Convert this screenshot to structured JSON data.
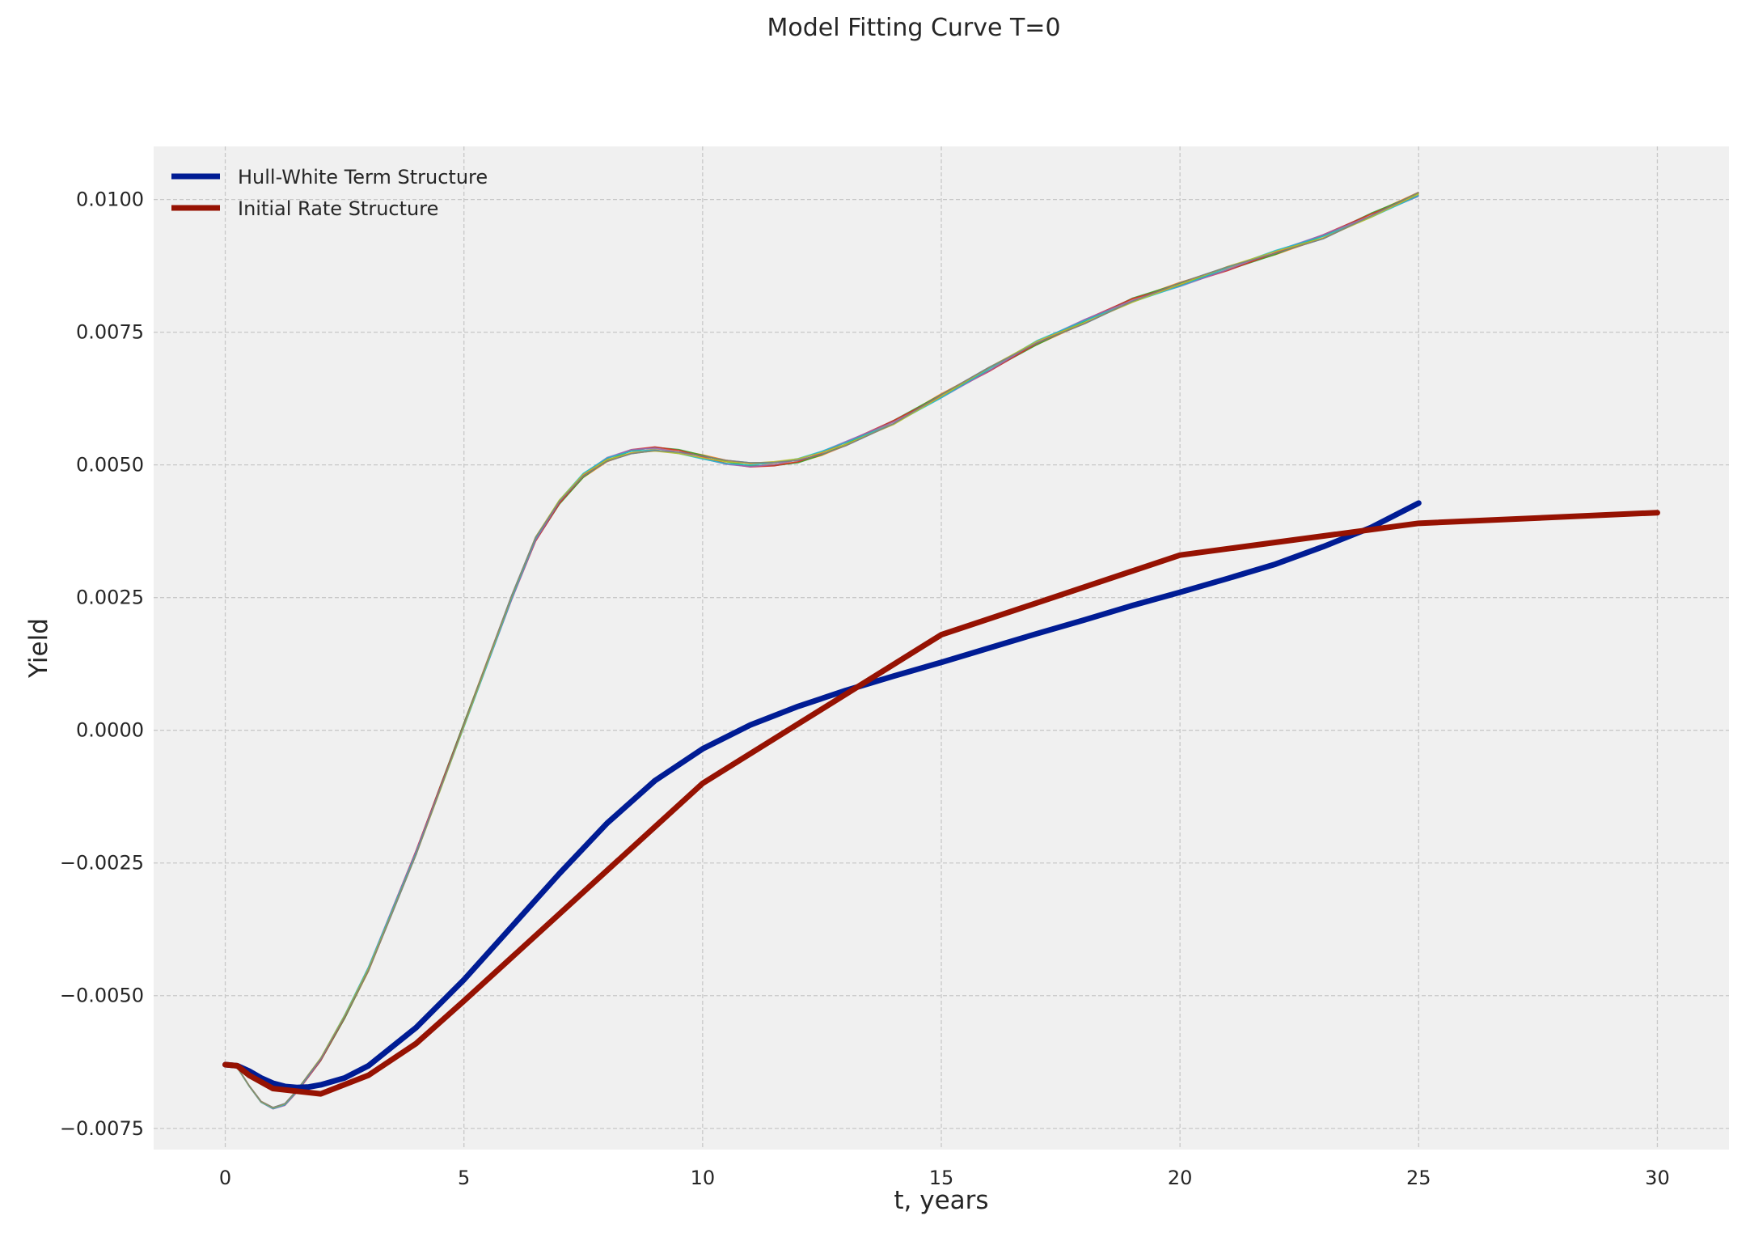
{
  "chart_data": {
    "type": "line",
    "title": "Model Fitting Curve T=0",
    "xlabel": "t, years",
    "ylabel": "Yield",
    "xlim": [
      -1.5,
      31.5
    ],
    "ylim": [
      -0.0079,
      0.011
    ],
    "x_ticks": [
      0,
      5,
      10,
      15,
      20,
      25,
      30
    ],
    "x_tick_labels": [
      "0",
      "5",
      "10",
      "15",
      "20",
      "25",
      "30"
    ],
    "y_ticks": [
      -0.0075,
      -0.005,
      -0.0025,
      0.0,
      0.0025,
      0.005,
      0.0075,
      0.01
    ],
    "y_tick_labels": [
      "−0.0075",
      "−0.0050",
      "−0.0025",
      "0.0000",
      "0.0025",
      "0.0050",
      "0.0075",
      "0.0100"
    ],
    "grid": true,
    "legend_position": "top-left",
    "series": [
      {
        "name": "Hull-White Term Structure",
        "color": "#001c94",
        "x": [
          0,
          0.25,
          0.5,
          0.75,
          1,
          1.25,
          1.5,
          1.75,
          2,
          2.5,
          3,
          4,
          5,
          6,
          7,
          8,
          9,
          10,
          11,
          12,
          13,
          14,
          15,
          16,
          17,
          18,
          19,
          20,
          21,
          22,
          23,
          24,
          25
        ],
        "values": [
          -0.0063,
          -0.00632,
          -0.00642,
          -0.00655,
          -0.00665,
          -0.00671,
          -0.00673,
          -0.00672,
          -0.00668,
          -0.00655,
          -0.00632,
          -0.0056,
          -0.0047,
          -0.0037,
          -0.0027,
          -0.00175,
          -0.00095,
          -0.00035,
          0.0001,
          0.00045,
          0.00075,
          0.00102,
          0.00128,
          0.00155,
          0.00182,
          0.00208,
          0.00235,
          0.0026,
          0.00286,
          0.00313,
          0.00346,
          0.00382,
          0.00428
        ]
      },
      {
        "name": "Initial Rate Structure",
        "color": "#961202",
        "x": [
          0,
          0.25,
          0.5,
          1,
          2,
          3,
          4,
          5,
          10,
          15,
          20,
          25,
          30
        ],
        "values": [
          -0.0063,
          -0.00632,
          -0.0065,
          -0.00675,
          -0.00685,
          -0.0065,
          -0.0059,
          -0.0051,
          -0.001,
          0.0018,
          0.0033,
          0.0039,
          0.0041
        ]
      }
    ],
    "simulation_paths": {
      "count": 8,
      "colors": [
        "#1f77b4",
        "#ff7f0e",
        "#2ca02c",
        "#d62728",
        "#9467bd",
        "#17becf",
        "#bcbd22",
        "#7f7f7f"
      ],
      "mean_x": [
        0,
        0.25,
        0.5,
        0.75,
        1,
        1.25,
        1.5,
        1.75,
        2,
        2.5,
        3,
        3.5,
        4,
        4.5,
        5,
        5.5,
        6,
        6.5,
        7,
        7.5,
        8,
        8.5,
        9,
        9.5,
        10,
        10.5,
        11,
        11.5,
        12,
        12.5,
        13,
        14,
        15,
        16,
        17,
        18,
        19,
        20,
        21,
        22,
        23,
        24,
        25
      ],
      "mean_values": [
        -0.0063,
        -0.00635,
        -0.0067,
        -0.007,
        -0.00712,
        -0.00705,
        -0.0068,
        -0.0065,
        -0.0062,
        -0.0054,
        -0.0045,
        -0.0034,
        -0.0023,
        -0.0011,
        0.0001,
        0.0013,
        0.0025,
        0.0036,
        0.0043,
        0.0048,
        0.0051,
        0.00525,
        0.0053,
        0.00525,
        0.00515,
        0.00505,
        0.005,
        0.00502,
        0.00508,
        0.00522,
        0.0054,
        0.0058,
        0.0063,
        0.0068,
        0.0073,
        0.0077,
        0.0081,
        0.0084,
        0.0087,
        0.009,
        0.0093,
        0.0097,
        0.0101
      ]
    }
  }
}
